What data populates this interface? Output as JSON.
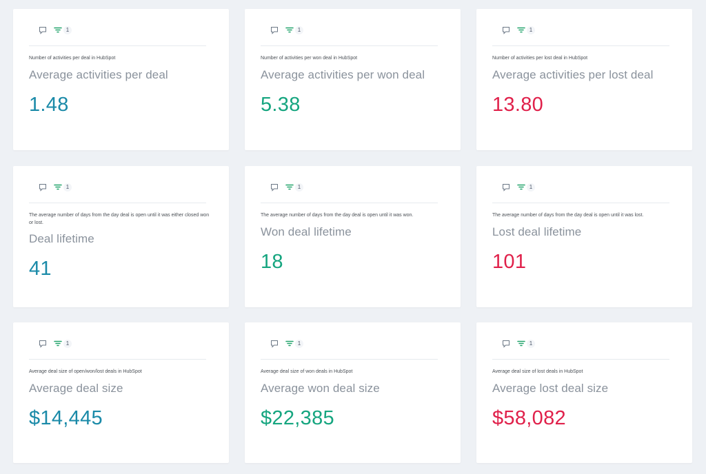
{
  "colors": {
    "all": "#1a8aa8",
    "won": "#15a57f",
    "lost": "#e0204a",
    "filter_icon": "#21a36a",
    "comment_icon": "#6b7785"
  },
  "icons": {
    "comment": "comment-icon",
    "filter": "filter-icon"
  },
  "cards": [
    {
      "filter_count": "1",
      "description": "Number of activities per deal in HubSpot",
      "title": "Average activities per deal",
      "value": "1.48",
      "tone": "all"
    },
    {
      "filter_count": "1",
      "description": "Number of activities per won deal in HubSpot",
      "title": "Average activities per won deal",
      "value": "5.38",
      "tone": "won"
    },
    {
      "filter_count": "1",
      "description": "Number of activities per lost deal in HubSpot",
      "title": "Average activities per lost deal",
      "value": "13.80",
      "tone": "lost"
    },
    {
      "filter_count": "1",
      "description": "The average number of days from the day deal is open until it was either closed won or lost.",
      "title": "Deal lifetime",
      "value": "41",
      "tone": "all"
    },
    {
      "filter_count": "1",
      "description": "The average number of days from the day deal is open until it was won.",
      "title": "Won deal lifetime",
      "value": "18",
      "tone": "won"
    },
    {
      "filter_count": "1",
      "description": "The average number of days from the day deal is open until it was lost.",
      "title": "Lost deal lifetime",
      "value": "101",
      "tone": "lost"
    },
    {
      "filter_count": "1",
      "description": "Average deal size of open/won/lost deals in HubSpot",
      "title": "Average deal size",
      "value": "$14,445",
      "tone": "all"
    },
    {
      "filter_count": "1",
      "description": "Average deal size of won deals in HubSpot",
      "title": "Average won deal size",
      "value": "$22,385",
      "tone": "won"
    },
    {
      "filter_count": "1",
      "description": "Average deal size of lost deals in HubSpot",
      "title": "Average lost deal size",
      "value": "$58,082",
      "tone": "lost"
    }
  ]
}
